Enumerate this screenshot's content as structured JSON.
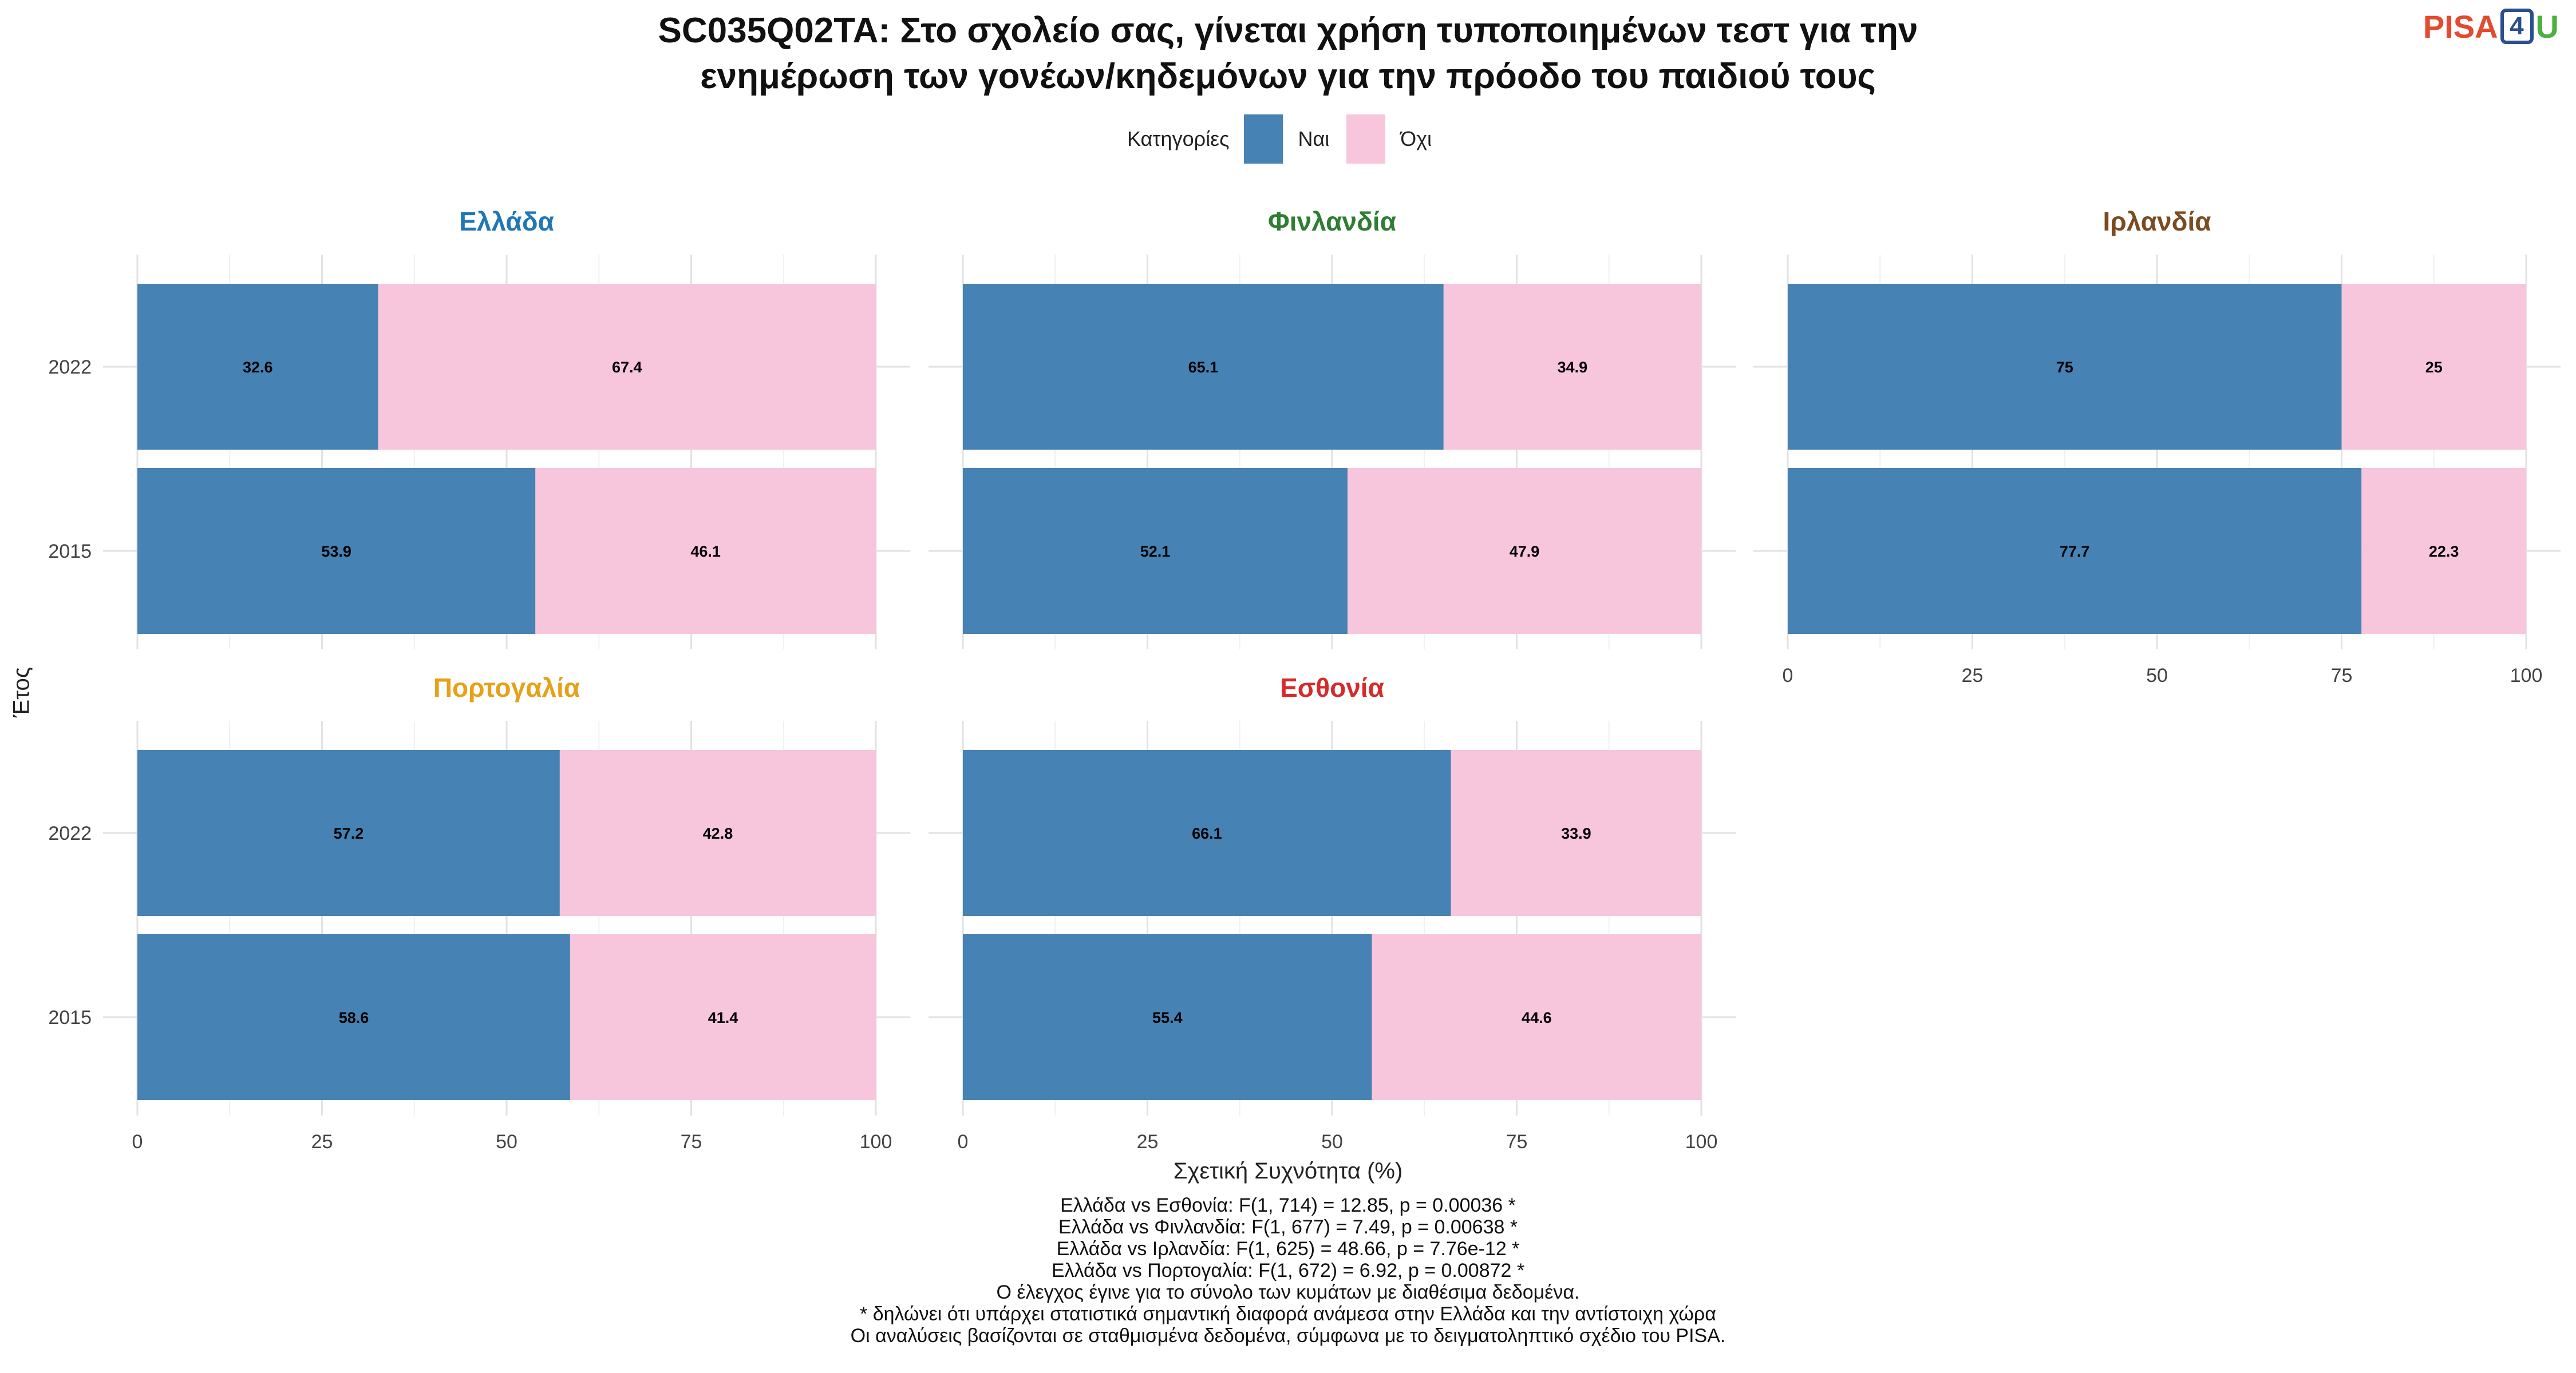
{
  "title": [
    "SC035Q02TA: Στο σχολείο σας, γίνεται χρήση τυποποιημένων τεστ για την",
    "ενημέρωση των γονέων/κηδεμόνων για την πρόοδο του παιδιού τους"
  ],
  "logo": {
    "pisa": "PISA",
    "four": "4",
    "u": "U"
  },
  "legend": {
    "title": "Κατηγορίες",
    "items": [
      {
        "label": "Ναι",
        "color": "#4682b4"
      },
      {
        "label": "Όχι",
        "color": "#f7c6dc"
      }
    ]
  },
  "chart_data": {
    "type": "bar",
    "orientation": "horizontal",
    "stacked": true,
    "ylabel": "Έτος",
    "xlabel": "Σχετική Συχνότητα (%)",
    "xlim": [
      0,
      100
    ],
    "xticks": [
      0,
      25,
      50,
      75,
      100
    ],
    "categories": [
      "2022",
      "2015"
    ],
    "series_names": [
      "Ναι",
      "Όχι"
    ],
    "colors": {
      "Ναι": "#4682b4",
      "Όχι": "#f7c6dc"
    },
    "panels": [
      {
        "title": "Ελλάδα",
        "title_color": "#1f77b4",
        "values": {
          "2022": [
            32.6,
            67.4
          ],
          "2015": [
            53.9,
            46.1
          ]
        },
        "labels": {
          "2022": [
            "32.6",
            "67.4"
          ],
          "2015": [
            "53.9",
            "46.1"
          ]
        }
      },
      {
        "title": "Φινλανδία",
        "title_color": "#2e7d32",
        "values": {
          "2022": [
            65.1,
            34.9
          ],
          "2015": [
            52.1,
            47.9
          ]
        },
        "labels": {
          "2022": [
            "65.1",
            "34.9"
          ],
          "2015": [
            "52.1",
            "47.9"
          ]
        }
      },
      {
        "title": "Ιρλανδία",
        "title_color": "#7b4a1e",
        "values": {
          "2022": [
            75,
            25
          ],
          "2015": [
            77.7,
            22.3
          ]
        },
        "labels": {
          "2022": [
            "75",
            "25"
          ],
          "2015": [
            "77.7",
            "22.3"
          ]
        }
      },
      {
        "title": "Πορτογαλία",
        "title_color": "#e6a117",
        "values": {
          "2022": [
            57.2,
            42.8
          ],
          "2015": [
            58.6,
            41.4
          ]
        },
        "labels": {
          "2022": [
            "57.2",
            "42.8"
          ],
          "2015": [
            "58.6",
            "41.4"
          ]
        }
      },
      {
        "title": "Εσθονία",
        "title_color": "#d62b2b",
        "values": {
          "2022": [
            66.1,
            33.9
          ],
          "2015": [
            55.4,
            44.6
          ]
        },
        "labels": {
          "2022": [
            "66.1",
            "33.9"
          ],
          "2015": [
            "55.4",
            "44.6"
          ]
        }
      }
    ]
  },
  "footer": [
    "Ελλάδα vs Εσθονία: F(1, 714) = 12.85, p = 0.00036 *",
    "Ελλάδα vs Φινλανδία: F(1, 677) = 7.49, p = 0.00638 *",
    "Ελλάδα vs Ιρλανδία: F(1, 625) = 48.66, p = 7.76e-12 *",
    "Ελλάδα vs Πορτογαλία: F(1, 672) = 6.92, p = 0.00872 *",
    "Ο έλεγχος έγινε για το σύνολο των κυμάτων με διαθέσιμα δεδομένα.",
    "* δηλώνει ότι υπάρχει στατιστικά σημαντική διαφορά ανάμεσα στην Ελλάδα και την αντίστοιχη χώρα",
    "Οι αναλύσεις βασίζονται σε σταθμισμένα δεδομένα, σύμφωνα με το δειγματοληπτικό σχέδιο του PISA."
  ]
}
